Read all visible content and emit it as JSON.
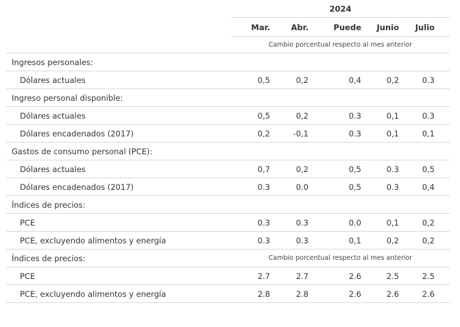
{
  "header": {
    "year": "2024",
    "months": [
      "Mar.",
      "Abr.",
      "Puede",
      "Junio",
      "Julio"
    ],
    "note": "Cambio porcentual respecto al mes anterior"
  },
  "rows": [
    {
      "label": "Ingresos personales:",
      "type": "section"
    },
    {
      "label": "Dólares actuales",
      "type": "data",
      "values": [
        "0,5",
        "0,2",
        "0,4",
        "0,2",
        "0.3"
      ]
    },
    {
      "label": "Ingreso personal disponible:",
      "type": "section"
    },
    {
      "label": "Dólares actuales",
      "type": "data",
      "values": [
        "0,5",
        "0,2",
        "0.3",
        "0,1",
        "0.3"
      ]
    },
    {
      "label": "Dólares encadenados (2017)",
      "type": "data",
      "values": [
        "0,2",
        "-0,1",
        "0.3",
        "0,1",
        "0,1"
      ]
    },
    {
      "label": "Gastos de consumo personal (PCE):",
      "type": "section"
    },
    {
      "label": "Dólares actuales",
      "type": "data",
      "values": [
        "0,7",
        "0,2",
        "0,5",
        "0.3",
        "0,5"
      ]
    },
    {
      "label": "Dólares encadenados (2017)",
      "type": "data",
      "values": [
        "0.3",
        "0.0",
        "0,5",
        "0.3",
        "0,4"
      ]
    },
    {
      "label": "Índices de precios:",
      "type": "section"
    },
    {
      "label": "PCE",
      "type": "data",
      "values": [
        "0.3",
        "0.3",
        "0.0",
        "0,1",
        "0,2"
      ]
    },
    {
      "label": "PCE, excluyendo alimentos y energía",
      "type": "data",
      "values": [
        "0.3",
        "0.3",
        "0,1",
        "0,2",
        "0,2"
      ]
    },
    {
      "label": "Índices de precios:",
      "type": "section-note",
      "note": "Cambio porcentual respecto al mes anterior"
    },
    {
      "label": "PCE",
      "type": "data",
      "values": [
        "2.7",
        "2.7",
        "2.6",
        "2.5",
        "2.5"
      ]
    },
    {
      "label": "PCE, excluyendo alimentos y energía",
      "type": "data",
      "values": [
        "2.8",
        "2.8",
        "2.6",
        "2.6",
        "2.6"
      ]
    }
  ]
}
